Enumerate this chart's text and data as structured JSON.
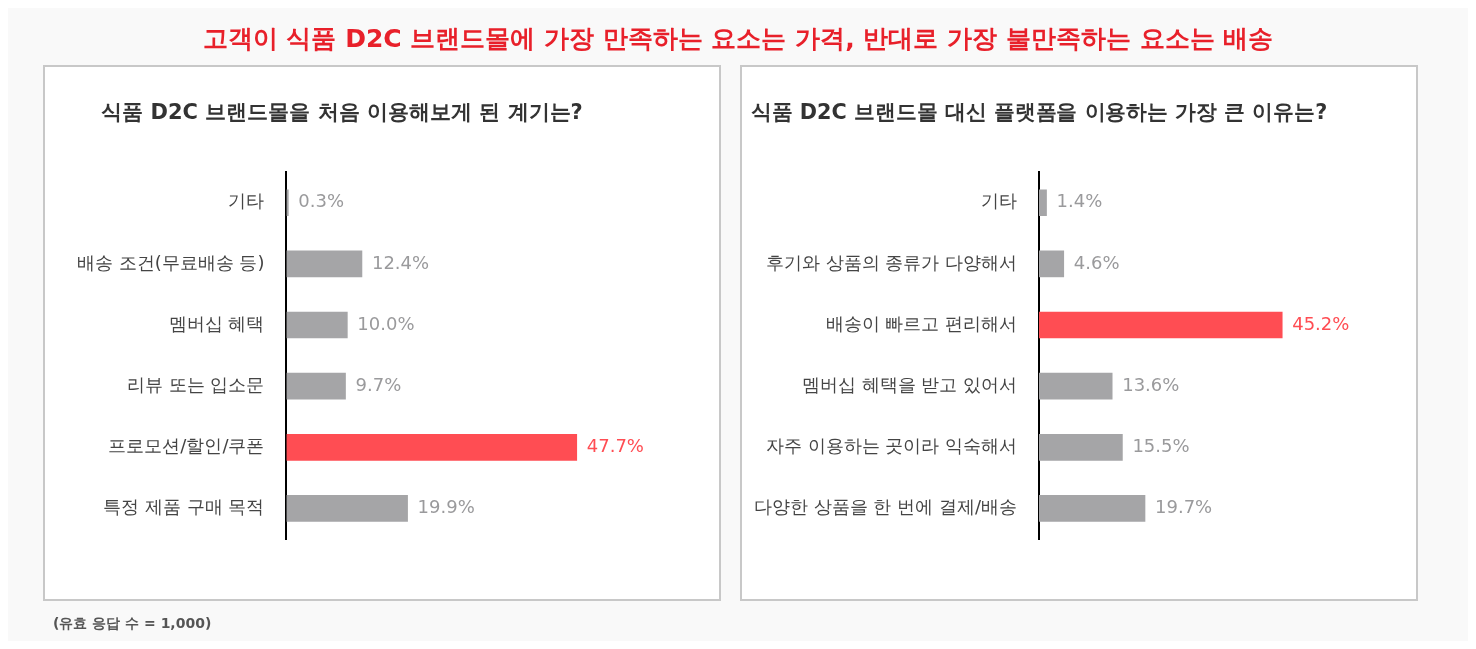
{
  "chart_data": [
    {
      "type": "other",
      "title": "고객이 식품 D2C 브랜드몰에 가장 만족하는 요소는 가격, 반대로 가장 불만족하는 요소는 배송"
    },
    {
      "type": "bar",
      "orientation": "horizontal",
      "title": "식품 D2C 브랜드몰을 처음 이용해보게 된 계기는?",
      "categories": [
        "기타",
        "배송 조건(무료배송 등)",
        "멤버십 혜택",
        "리뷰 또는 입소문",
        "프로모션/할인/쿠폰",
        "특정 제품 구매 목적"
      ],
      "values": [
        0.3,
        12.4,
        10.0,
        9.7,
        47.7,
        19.9
      ],
      "value_labels": [
        "0.3%",
        "12.4%",
        "10.0%",
        "9.7%",
        "47.7%",
        "19.9%"
      ],
      "colors": [
        "#a5a5a7",
        "#a5a5a7",
        "#a5a5a7",
        "#a5a5a7",
        "#ff4d53",
        "#a5a5a7"
      ],
      "tick_labels": "y",
      "annotations": [
        "(유효 응답 수 = 1,000)"
      ]
    },
    {
      "type": "bar",
      "orientation": "horizontal",
      "title": "식품 D2C 브랜드몰 대신 플랫폼을 이용하는 가장 큰 이유는?",
      "categories": [
        "기타",
        "후기와 상품의 종류가 다양해서",
        "배송이 빠르고 편리해서",
        "멤버십 혜택을 받고 있어서",
        "자주 이용하는 곳이라 익숙해서",
        "다양한 상품을 한 번에 결제/배송"
      ],
      "values": [
        1.4,
        4.6,
        45.2,
        13.6,
        15.5,
        19.7
      ],
      "value_labels": [
        "1.4%",
        "4.6%",
        "45.2%",
        "13.6%",
        "15.5%",
        "19.7%"
      ],
      "colors": [
        "#a5a5a7",
        "#a5a5a7",
        "#ff4d53",
        "#a5a5a7",
        "#a5a5a7",
        "#a5a5a7"
      ],
      "tick_labels": "y"
    }
  ]
}
